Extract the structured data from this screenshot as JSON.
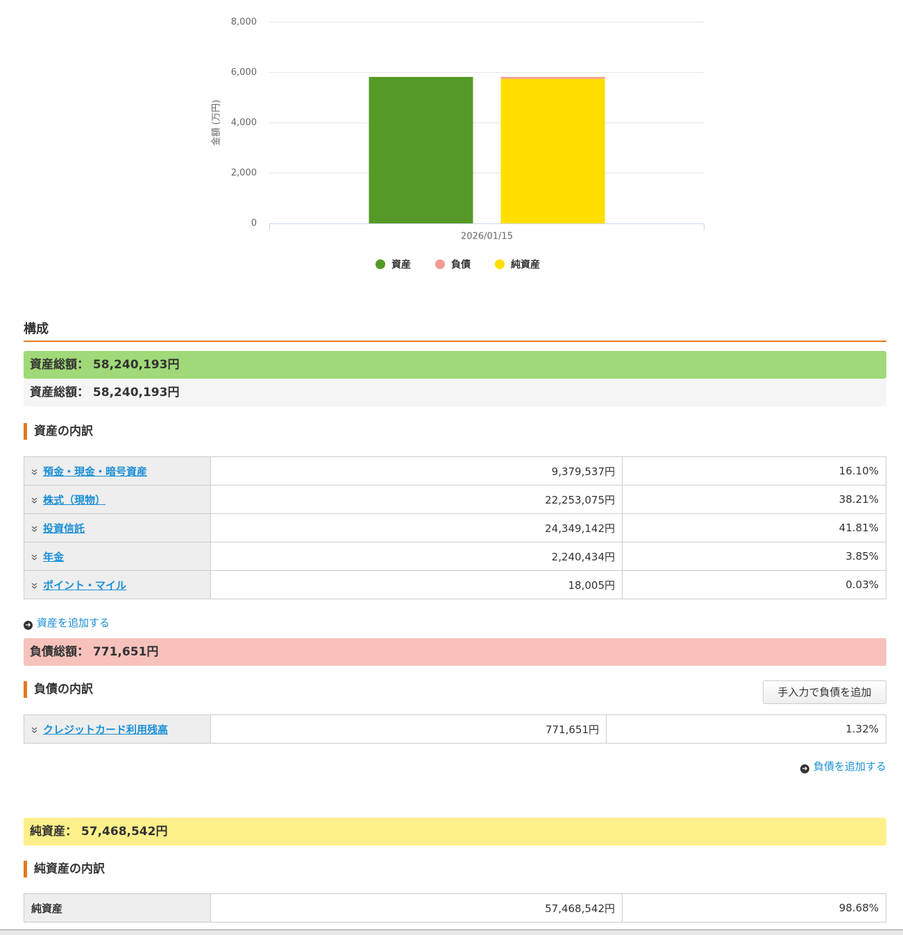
{
  "chart_data": {
    "type": "bar",
    "ylabel": "金額 (万円)",
    "categories": [
      "2026/01/15"
    ],
    "series": [
      {
        "name": "資産",
        "color": "#559a27",
        "values": [
          5824
        ]
      },
      {
        "name": "負債",
        "color": "#f29a94",
        "values": [
          77
        ]
      },
      {
        "name": "純資産",
        "color": "#ffde00",
        "values": [
          5747
        ]
      }
    ],
    "ylim": [
      0,
      8000
    ],
    "yticks": [
      0,
      {
        "value": 2000,
        "label": "2,000"
      },
      {
        "value": 4000,
        "label": "4,000"
      },
      {
        "value": 6000,
        "label": "6,000"
      },
      {
        "value": 8000,
        "label": "8,000"
      }
    ],
    "grid": true
  },
  "composition": {
    "heading": "構成",
    "assets": {
      "label": "資産総額：",
      "total": "58,240,193円",
      "breakdown": "資産の内訳",
      "add": "資産を追加する",
      "rows": [
        [
          "預金・現金・暗号資産",
          "9,379,537円",
          "16.10%"
        ],
        [
          "株式（現物）",
          "22,253,075円",
          "38.21%"
        ],
        [
          "投資信託",
          "24,349,142円",
          "41.81%"
        ],
        [
          "年金",
          "2,240,434円",
          "3.85%"
        ],
        [
          "ポイント・マイル",
          "18,005円",
          "0.03%"
        ]
      ]
    },
    "liabilities": {
      "label": "負債総額：",
      "total": "771,651円",
      "breakdown": "負債の内訳",
      "button": "手入力で負債を追加",
      "add": "負債を追加する",
      "rows": [
        [
          "クレジットカード利用残高",
          "771,651円",
          "1.32%"
        ]
      ]
    },
    "net": {
      "label": "純資産：",
      "total": "57,468,542円",
      "breakdown": "純資産の内訳",
      "rows": [
        [
          "純資産",
          "57,468,542円",
          "98.68%"
        ]
      ]
    }
  }
}
